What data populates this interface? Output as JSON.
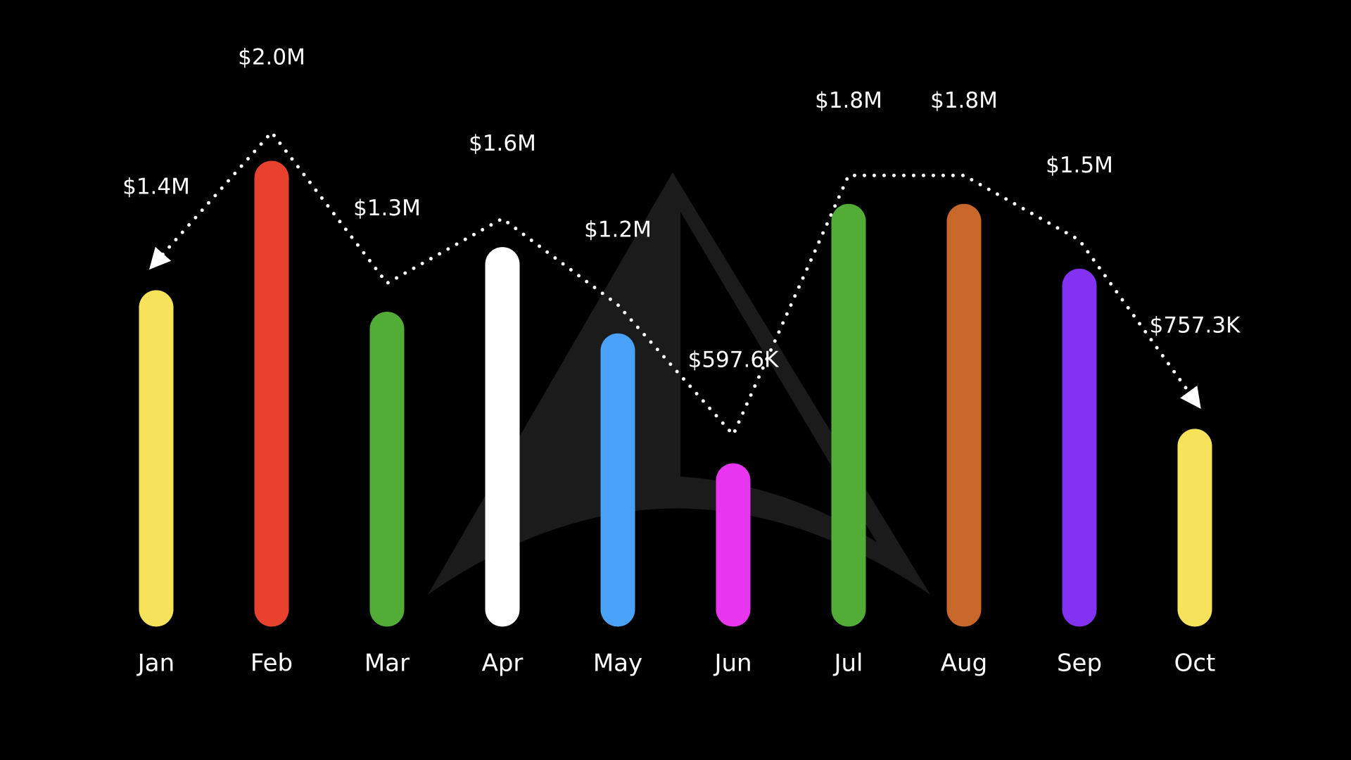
{
  "chart_data": {
    "type": "bar",
    "categories": [
      "Jan",
      "Feb",
      "Mar",
      "Apr",
      "May",
      "Jun",
      "Jul",
      "Aug",
      "Sep",
      "Oct"
    ],
    "values": [
      1400000,
      2000000,
      1300000,
      1600000,
      1200000,
      597600,
      1800000,
      1800000,
      1500000,
      757300
    ],
    "value_labels": [
      "$1.4M",
      "$2.0M",
      "$1.3M",
      "$1.6M",
      "$1.2M",
      "$597.6K",
      "$1.8M",
      "$1.8M",
      "$1.5M",
      "$757.3K"
    ],
    "colors": [
      "#f7e35a",
      "#e8412e",
      "#52ad36",
      "#ffffff",
      "#4aa2f8",
      "#e835ef",
      "#52ad36",
      "#c7682a",
      "#8331f2",
      "#f7e35a"
    ],
    "ylim": [
      0,
      2000000
    ],
    "trend_line": true
  }
}
